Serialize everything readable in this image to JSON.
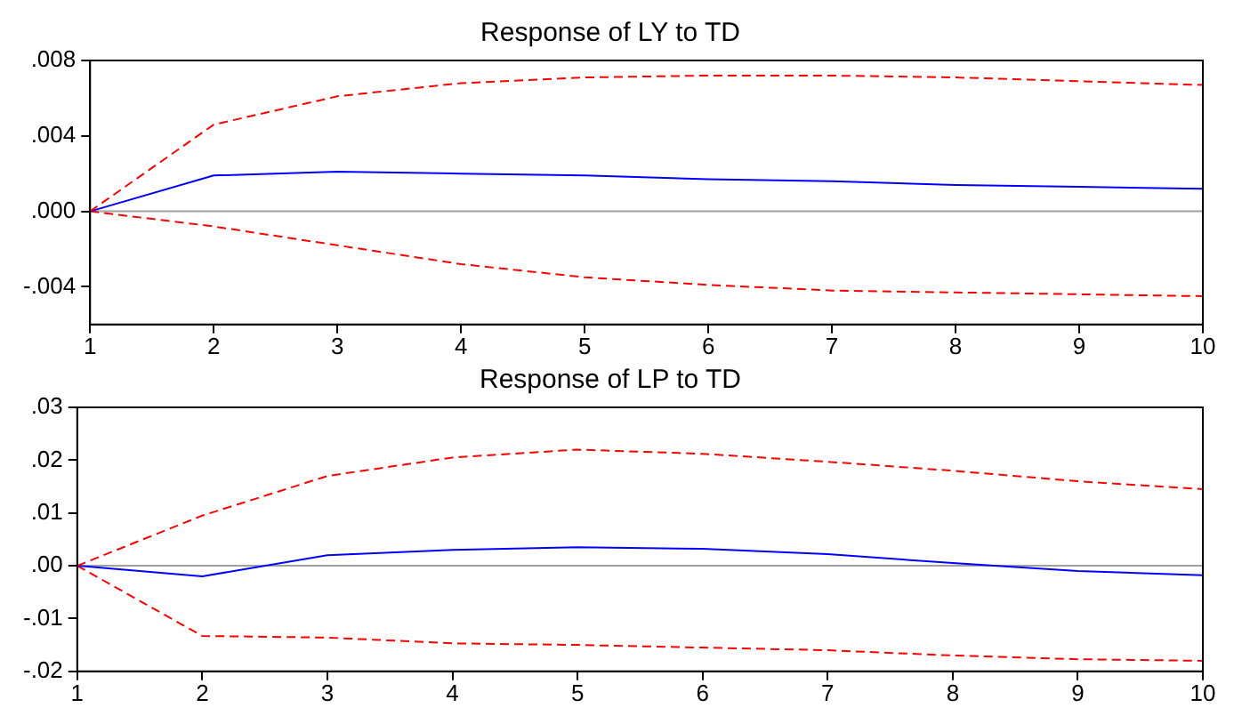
{
  "chart_data": [
    {
      "type": "line",
      "title": "Response of LY to TD",
      "x": [
        1,
        2,
        3,
        4,
        5,
        6,
        7,
        8,
        9,
        10
      ],
      "xlim": [
        1,
        10
      ],
      "xticks": [
        1,
        2,
        3,
        4,
        5,
        6,
        7,
        8,
        9,
        10
      ],
      "ylim": [
        -0.006,
        0.008
      ],
      "yticks": [
        {
          "value": -0.004,
          "label": "-.004"
        },
        {
          "value": 0,
          "label": ".000"
        },
        {
          "value": 0.004,
          "label": ".004"
        },
        {
          "value": 0.008,
          "label": ".008"
        }
      ],
      "grid": false,
      "legend": false,
      "marker": "none",
      "series": [
        {
          "color": "#ff0000",
          "line_style": "dashed",
          "values": [
            0,
            0.0046,
            0.0061,
            0.0068,
            0.0071,
            0.0072,
            0.0072,
            0.0071,
            0.0069,
            0.0067
          ]
        },
        {
          "color": "#0000ff",
          "line_style": "solid",
          "values": [
            0,
            0.0019,
            0.0021,
            0.002,
            0.0019,
            0.0017,
            0.0016,
            0.0014,
            0.0013,
            0.0012
          ]
        },
        {
          "color": "#ff0000",
          "line_style": "dashed",
          "values": [
            0,
            -0.0008,
            -0.0018,
            -0.0028,
            -0.0035,
            -0.0039,
            -0.0042,
            -0.0043,
            -0.0044,
            -0.0045
          ]
        }
      ],
      "ref_lines": [
        {
          "axis": "y",
          "value": 0,
          "color": "#a0a0a0"
        }
      ]
    },
    {
      "type": "line",
      "title": "Response of LP to TD",
      "x": [
        1,
        2,
        3,
        4,
        5,
        6,
        7,
        8,
        9,
        10
      ],
      "xlim": [
        1,
        10
      ],
      "xticks": [
        1,
        2,
        3,
        4,
        5,
        6,
        7,
        8,
        9,
        10
      ],
      "ylim": [
        -0.02,
        0.03
      ],
      "yticks": [
        {
          "value": -0.02,
          "label": "-.02"
        },
        {
          "value": -0.01,
          "label": "-.01"
        },
        {
          "value": 0,
          "label": ".00"
        },
        {
          "value": 0.01,
          "label": ".01"
        },
        {
          "value": 0.02,
          "label": ".02"
        },
        {
          "value": 0.03,
          "label": ".03"
        }
      ],
      "grid": false,
      "legend": false,
      "marker": "none",
      "series": [
        {
          "color": "#ff0000",
          "line_style": "dashed",
          "values": [
            0,
            0.0095,
            0.017,
            0.0205,
            0.022,
            0.0212,
            0.0197,
            0.018,
            0.016,
            0.0145
          ]
        },
        {
          "color": "#0000ff",
          "line_style": "solid",
          "values": [
            0,
            -0.002,
            0.002,
            0.003,
            0.0035,
            0.0032,
            0.0022,
            0.0005,
            -0.001,
            -0.0018
          ]
        },
        {
          "color": "#ff0000",
          "line_style": "dashed",
          "values": [
            0,
            -0.0133,
            -0.0136,
            -0.0147,
            -0.015,
            -0.0155,
            -0.016,
            -0.017,
            -0.0177,
            -0.018
          ]
        }
      ],
      "ref_lines": [
        {
          "axis": "y",
          "value": 0,
          "color": "#a0a0a0"
        }
      ]
    }
  ]
}
